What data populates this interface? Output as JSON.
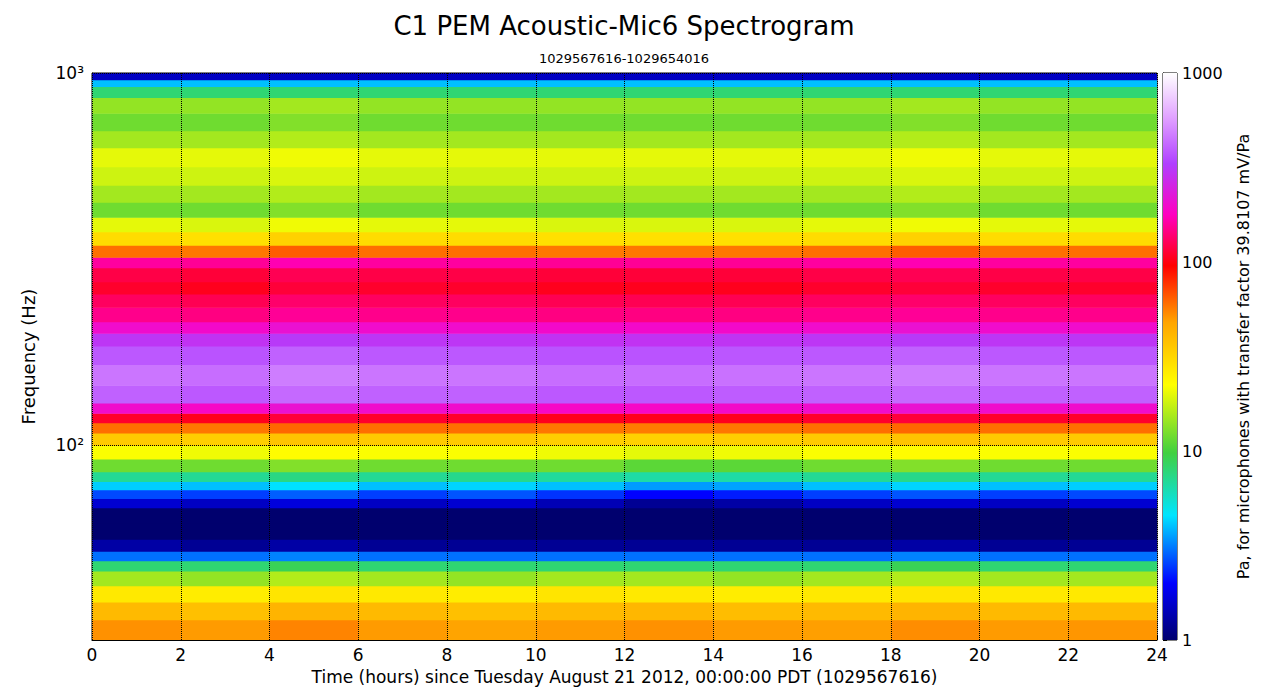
{
  "chart_data": {
    "type": "heatmap",
    "title": "C1 PEM Acoustic-Mic6 Spectrogram",
    "subtitle": "1029567616-1029654016",
    "x_label": "Time (hours) since Tuesday August 21 2012, 00:00:00 PDT (1029567616)",
    "y_label": "Frequency (Hz)",
    "xlim": [
      0,
      24
    ],
    "xticks": [
      0,
      2,
      4,
      6,
      8,
      10,
      12,
      14,
      16,
      18,
      20,
      22,
      24
    ],
    "ylim": [
      30,
      1000
    ],
    "yticks": [
      {
        "value": 100,
        "label": "10²"
      },
      {
        "value": 1000,
        "label": "10³"
      }
    ],
    "log": "y",
    "grid": true,
    "cells": {
      "time_edges": [
        0,
        2,
        4,
        6,
        8,
        10,
        12,
        14,
        16,
        18,
        20,
        22,
        24
      ],
      "frequency_edges": [
        30,
        34,
        38,
        42,
        46,
        49,
        52,
        56,
        62,
        68,
        72,
        76,
        80,
        85,
        92,
        100,
        108,
        115,
        122,
        130,
        145,
        165,
        185,
        200,
        215,
        235,
        255,
        275,
        300,
        320,
        345,
        375,
        410,
        450,
        500,
        560,
        630,
        700,
        780,
        860,
        920,
        960,
        1000
      ],
      "values": [
        [
          52,
          50,
          55,
          50,
          48,
          50,
          52,
          50,
          49,
          53,
          50,
          51
        ],
        [
          40,
          38,
          42,
          40,
          38,
          40,
          41,
          39,
          40,
          42,
          40,
          40
        ],
        [
          27,
          26,
          28,
          27,
          26,
          28,
          27,
          26,
          27,
          28,
          27,
          27
        ],
        [
          15,
          14,
          16,
          15,
          14,
          15,
          15,
          14,
          15,
          16,
          15,
          15
        ],
        [
          8,
          8,
          9,
          8,
          8,
          8,
          8,
          8,
          8,
          9,
          8,
          8
        ],
        [
          3,
          3,
          3.2,
          3,
          3,
          3,
          3,
          3,
          3,
          3.2,
          3,
          3
        ],
        [
          1.3,
          1.2,
          1.3,
          1.2,
          1.2,
          1.2,
          1.2,
          1.2,
          1.2,
          1.3,
          1.2,
          1.2
        ],
        [
          1,
          1,
          1,
          1,
          1,
          1,
          1,
          1,
          1,
          1,
          1,
          1
        ],
        [
          1,
          1,
          1,
          1,
          1,
          1,
          1,
          1,
          1,
          1,
          1,
          1
        ],
        [
          1.6,
          1.5,
          1.7,
          1.5,
          1.6,
          1.4,
          1.2,
          1.3,
          1.5,
          1.6,
          1.5,
          1.6
        ],
        [
          2.6,
          2.5,
          2.8,
          2.5,
          2.7,
          2.4,
          2,
          2.2,
          2.5,
          2.7,
          2.5,
          2.6
        ],
        [
          4.2,
          4,
          4.5,
          4,
          4.3,
          4,
          3.5,
          3.6,
          4,
          4.3,
          4,
          4.2
        ],
        [
          7,
          7,
          7.5,
          7,
          7.2,
          6.8,
          6.5,
          6.5,
          7,
          7.3,
          7,
          7
        ],
        [
          12,
          12,
          13,
          12,
          12,
          12,
          11,
          11,
          12,
          13,
          12,
          12
        ],
        [
          22,
          21,
          23,
          22,
          22,
          21,
          20,
          21,
          22,
          23,
          22,
          22
        ],
        [
          35,
          34,
          37,
          35,
          35,
          34,
          33,
          34,
          35,
          37,
          35,
          35
        ],
        [
          60,
          58,
          62,
          60,
          60,
          58,
          57,
          58,
          60,
          62,
          60,
          60
        ],
        [
          110,
          105,
          115,
          110,
          110,
          105,
          105,
          105,
          110,
          115,
          110,
          110
        ],
        [
          200,
          190,
          210,
          200,
          200,
          190,
          190,
          195,
          200,
          210,
          200,
          200
        ],
        [
          400,
          380,
          420,
          400,
          400,
          380,
          380,
          390,
          400,
          420,
          400,
          400
        ],
        [
          450,
          430,
          470,
          450,
          450,
          430,
          430,
          440,
          450,
          470,
          450,
          450
        ],
        [
          380,
          370,
          400,
          380,
          380,
          370,
          370,
          375,
          380,
          400,
          380,
          380
        ],
        [
          300,
          290,
          310,
          300,
          300,
          290,
          290,
          295,
          300,
          310,
          300,
          300
        ],
        [
          200,
          195,
          210,
          200,
          200,
          195,
          195,
          195,
          200,
          210,
          200,
          200
        ],
        [
          150,
          145,
          155,
          150,
          150,
          145,
          145,
          145,
          150,
          155,
          150,
          150
        ],
        [
          130,
          125,
          135,
          130,
          130,
          125,
          125,
          125,
          130,
          135,
          130,
          130
        ],
        [
          110,
          105,
          115,
          110,
          110,
          105,
          105,
          105,
          110,
          115,
          110,
          110
        ],
        [
          120,
          115,
          125,
          120,
          120,
          115,
          115,
          115,
          120,
          125,
          120,
          120
        ],
        [
          160,
          155,
          170,
          160,
          160,
          155,
          155,
          155,
          160,
          170,
          160,
          160
        ],
        [
          60,
          58,
          65,
          60,
          60,
          58,
          58,
          58,
          60,
          65,
          60,
          60
        ],
        [
          30,
          29,
          33,
          30,
          30,
          29,
          29,
          29,
          30,
          33,
          30,
          30
        ],
        [
          20,
          19,
          21,
          20,
          20,
          19,
          19,
          19,
          20,
          21,
          20,
          20
        ],
        [
          12,
          12,
          13,
          12,
          12,
          12,
          12,
          12,
          12,
          13,
          12,
          12
        ],
        [
          15,
          15,
          16,
          15,
          15,
          15,
          15,
          15,
          15,
          16,
          15,
          15
        ],
        [
          18,
          18,
          19,
          18,
          18,
          18,
          18,
          18,
          18,
          19,
          18,
          18
        ],
        [
          20,
          20,
          21,
          20,
          20,
          20,
          20,
          20,
          20,
          21,
          20,
          20
        ],
        [
          15,
          15,
          16,
          15,
          15,
          15,
          15,
          15,
          15,
          16,
          15,
          15
        ],
        [
          12,
          12,
          13,
          12,
          12,
          12,
          12,
          12,
          12,
          13,
          12,
          12
        ],
        [
          14,
          14,
          15,
          14,
          14,
          14,
          14,
          14,
          14,
          15,
          14,
          14
        ],
        [
          8,
          8,
          8,
          8,
          8,
          8,
          8,
          8,
          8,
          8,
          8,
          8
        ],
        [
          4,
          4,
          4,
          4,
          4,
          4,
          4,
          4,
          4,
          4,
          4,
          4
        ],
        [
          1.5,
          1.5,
          1.5,
          1.5,
          1.5,
          1.5,
          1.5,
          1.5,
          1.5,
          1.5,
          1.5,
          1.5
        ]
      ]
    },
    "colorbar": {
      "label": "Pa, for microphones with transfer factor 39.8107 mV/Pa",
      "lim": [
        1,
        1000
      ],
      "ticks": [
        1,
        10,
        100,
        1000
      ],
      "log": true
    }
  }
}
